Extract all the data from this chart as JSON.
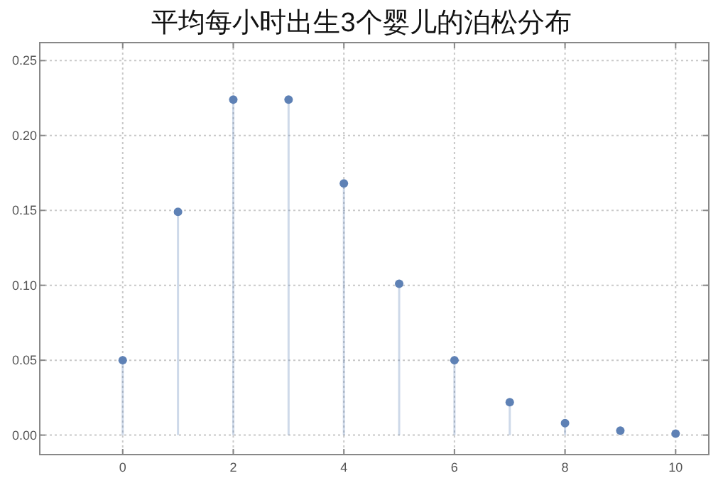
{
  "chart_data": {
    "type": "lollipop",
    "title": "平均每小时出生3个婴儿的泊松分布",
    "x": [
      0,
      1,
      2,
      3,
      4,
      5,
      6,
      7,
      8,
      9,
      10
    ],
    "values": [
      0.05,
      0.149,
      0.224,
      0.224,
      0.168,
      0.101,
      0.05,
      0.022,
      0.008,
      0.003,
      0.001
    ],
    "color": "#5e81b5",
    "marker": "circle",
    "xlim": [
      -1.5,
      10.6
    ],
    "ylim": [
      -0.013,
      0.262
    ],
    "xticks": [
      0,
      2,
      4,
      6,
      8,
      10
    ],
    "yticks": [
      {
        "value": 0,
        "label": "0.00"
      },
      {
        "value": 0.05,
        "label": "0.05"
      },
      {
        "value": 0.1,
        "label": "0.10"
      },
      {
        "value": 0.15,
        "label": "0.15"
      },
      {
        "value": 0.2,
        "label": "0.20"
      },
      {
        "value": 0.25,
        "label": "0.25"
      }
    ],
    "grid": true
  }
}
